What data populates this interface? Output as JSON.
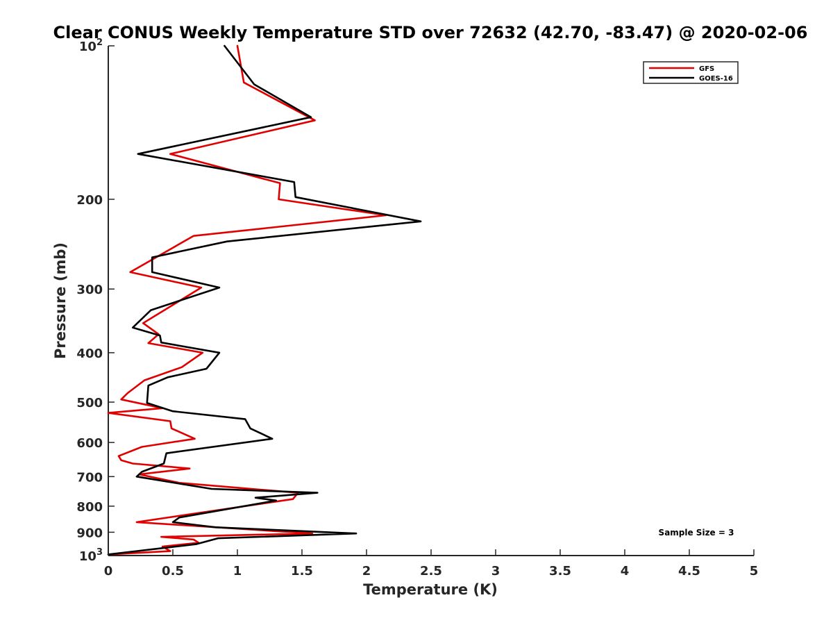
{
  "chart_data": {
    "type": "line",
    "title": "Clear CONUS Weekly Temperature STD over 72632 (42.70, -83.47) @ 2020-02-06",
    "xlabel": "Temperature (K)",
    "ylabel": "Pressure (mb)",
    "xlim": [
      0,
      5
    ],
    "ylim": [
      100,
      1000
    ],
    "y_scale": "log",
    "y_reversed": true,
    "grid": false,
    "legend_position": "top-right",
    "x_ticks": [
      0,
      0.5,
      1,
      1.5,
      2,
      2.5,
      3,
      3.5,
      4,
      4.5,
      5
    ],
    "x_tick_labels": [
      "0",
      "0.5",
      "1",
      "1.5",
      "2",
      "2.5",
      "3",
      "3.5",
      "4",
      "4.5",
      "5"
    ],
    "y_ticks": [
      100,
      200,
      300,
      400,
      500,
      600,
      700,
      800,
      900,
      1000
    ],
    "y_tick_labels": [
      {
        "base": "10",
        "exp": "2"
      },
      {
        "base": "200",
        "exp": ""
      },
      {
        "base": "300",
        "exp": ""
      },
      {
        "base": "400",
        "exp": ""
      },
      {
        "base": "500",
        "exp": ""
      },
      {
        "base": "600",
        "exp": ""
      },
      {
        "base": "700",
        "exp": ""
      },
      {
        "base": "800",
        "exp": ""
      },
      {
        "base": "900",
        "exp": ""
      },
      {
        "base": "10",
        "exp": "3"
      }
    ],
    "series": [
      {
        "name": "GFS",
        "color": "#e00000",
        "points": [
          [
            1.0,
            100
          ],
          [
            1.05,
            118
          ],
          [
            1.6,
            140
          ],
          [
            0.48,
            163
          ],
          [
            1.33,
            186
          ],
          [
            1.32,
            200
          ],
          [
            2.15,
            215
          ],
          [
            0.66,
            236
          ],
          [
            0.17,
            278
          ],
          [
            0.72,
            298
          ],
          [
            0.27,
            350
          ],
          [
            0.39,
            368
          ],
          [
            0.31,
            383
          ],
          [
            0.73,
            400
          ],
          [
            0.57,
            427
          ],
          [
            0.28,
            453
          ],
          [
            0.15,
            480
          ],
          [
            0.1,
            494
          ],
          [
            0.42,
            514
          ],
          [
            0.0,
            525
          ],
          [
            0.48,
            545
          ],
          [
            0.49,
            563
          ],
          [
            0.67,
            590
          ],
          [
            0.26,
            612
          ],
          [
            0.08,
            638
          ],
          [
            0.1,
            650
          ],
          [
            0.19,
            660
          ],
          [
            0.63,
            675
          ],
          [
            0.24,
            693
          ],
          [
            0.55,
            720
          ],
          [
            1.47,
            753
          ],
          [
            1.43,
            775
          ],
          [
            0.22,
            860
          ],
          [
            1.58,
            905
          ],
          [
            0.41,
            919
          ],
          [
            0.66,
            930
          ],
          [
            0.7,
            944
          ],
          [
            0.42,
            960
          ],
          [
            0.48,
            980
          ],
          [
            0.0,
            995
          ]
        ]
      },
      {
        "name": "GOES-16",
        "color": "#000000",
        "points": [
          [
            0.9,
            100
          ],
          [
            1.13,
            119
          ],
          [
            1.57,
            138
          ],
          [
            0.23,
            163
          ],
          [
            1.44,
            185
          ],
          [
            1.45,
            198
          ],
          [
            2.42,
            221
          ],
          [
            0.92,
            242
          ],
          [
            0.34,
            260
          ],
          [
            0.34,
            278
          ],
          [
            0.86,
            298
          ],
          [
            0.33,
            330
          ],
          [
            0.19,
            357
          ],
          [
            0.4,
            370
          ],
          [
            0.41,
            382
          ],
          [
            0.86,
            400
          ],
          [
            0.76,
            430
          ],
          [
            0.46,
            447
          ],
          [
            0.31,
            464
          ],
          [
            0.3,
            502
          ],
          [
            0.5,
            521
          ],
          [
            1.06,
            540
          ],
          [
            1.1,
            563
          ],
          [
            1.27,
            590
          ],
          [
            0.45,
            630
          ],
          [
            0.43,
            660
          ],
          [
            0.26,
            685
          ],
          [
            0.22,
            700
          ],
          [
            0.8,
            740
          ],
          [
            1.62,
            753
          ],
          [
            1.14,
            770
          ],
          [
            1.3,
            780
          ],
          [
            0.55,
            842
          ],
          [
            0.5,
            860
          ],
          [
            0.83,
            880
          ],
          [
            1.92,
            905
          ],
          [
            0.85,
            925
          ],
          [
            0.68,
            950
          ],
          [
            0.0,
            995
          ]
        ]
      }
    ],
    "annotations": [
      "Sample Size = 3"
    ]
  }
}
